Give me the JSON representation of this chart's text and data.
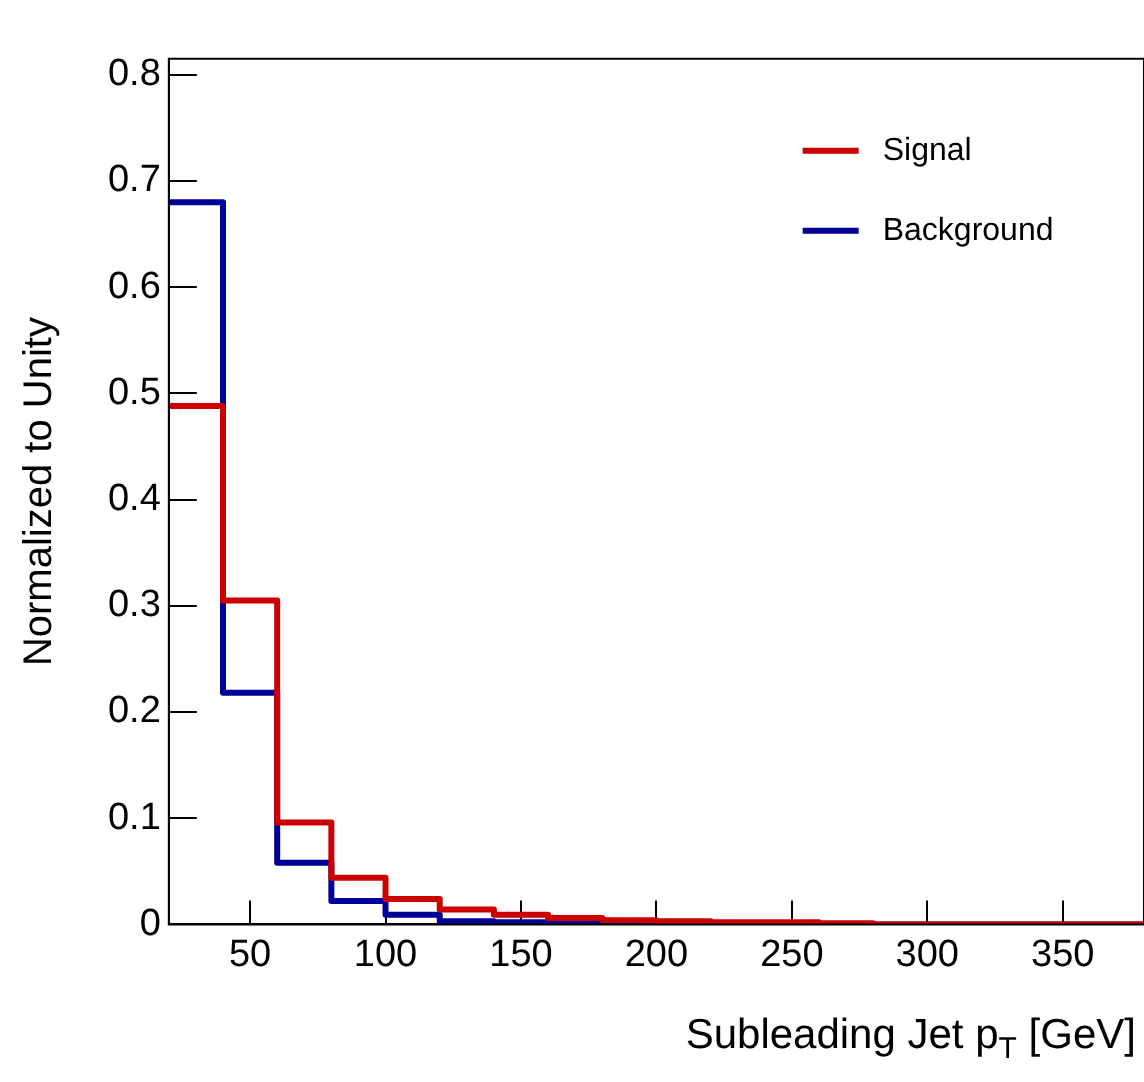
{
  "chart_data": {
    "type": "histogram",
    "xlabel": "Subleading Jet p$_{T}$ [GeV]",
    "ylabel": "Normalized to Unity",
    "bins": [
      20,
      40,
      60,
      80,
      100,
      120,
      140,
      160,
      180,
      200,
      220,
      240,
      260,
      280,
      300,
      320,
      340,
      360,
      380
    ],
    "series": [
      {
        "name": "Signal",
        "color": "#cc0000",
        "values": [
          0.488,
          0.305,
          0.096,
          0.044,
          0.024,
          0.014,
          0.009,
          0.006,
          0.004,
          0.003,
          0.002,
          0.002,
          0.001,
          0,
          0,
          0,
          0,
          0
        ]
      },
      {
        "name": "Background",
        "color": "#000099",
        "values": [
          0.68,
          0.218,
          0.058,
          0.022,
          0.009,
          0.003,
          0.002,
          0.001,
          0.001,
          0,
          0,
          0,
          0,
          0,
          0,
          0,
          0,
          0
        ]
      }
    ],
    "xlim": [
      20,
      380
    ],
    "xticks": [
      50,
      100,
      150,
      200,
      250,
      300,
      350
    ],
    "ylim": [
      0,
      0.815
    ],
    "yticks": [
      0,
      0.1,
      0.2,
      0.3,
      0.4,
      0.5,
      0.6,
      0.7,
      0.8
    ],
    "grid": false,
    "legend": "top right"
  }
}
